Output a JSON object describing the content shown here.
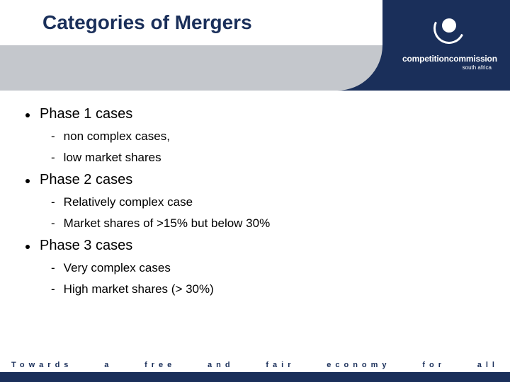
{
  "colors": {
    "navy": "#1a2f5a",
    "grey": "#c4c7cc",
    "white": "#ffffff",
    "text": "#000000"
  },
  "title": "Categories of Mergers",
  "logo": {
    "main": "competitioncommission",
    "sub": "south africa"
  },
  "bullets": {
    "phase1": {
      "label": "Phase 1 cases",
      "sub1": "non complex cases,",
      "sub2": "low market shares"
    },
    "phase2": {
      "label": "Phase 2 cases",
      "sub1": "Relatively complex case",
      "sub2": "Market shares of  >15% but below 30%"
    },
    "phase3": {
      "label": "Phase 3 cases",
      "sub1": "Very complex cases",
      "sub2": "High market shares (> 30%)"
    }
  },
  "footer": {
    "w1": "Towards",
    "w2": "a",
    "w3": "free",
    "w4": "and",
    "w5": "fair",
    "w6": "economy",
    "w7": "for",
    "w8": "all"
  }
}
